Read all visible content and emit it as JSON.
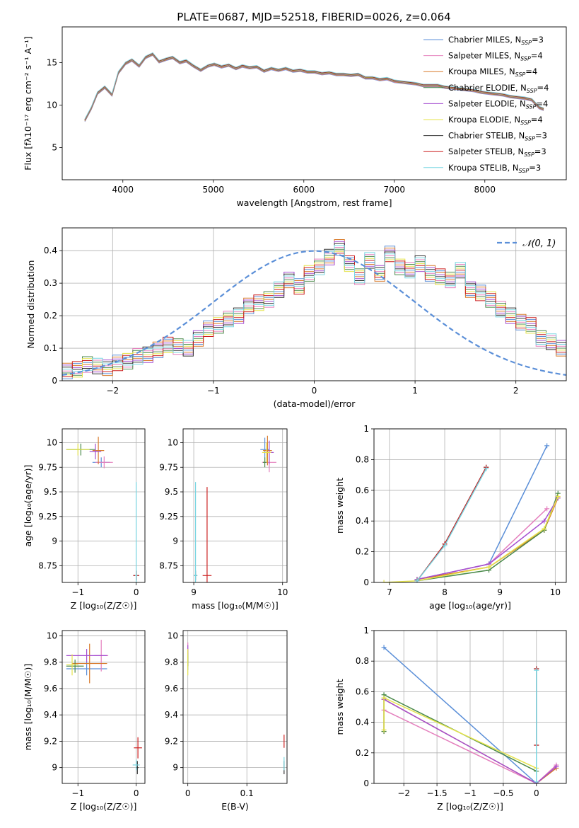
{
  "figure_title": "PLATE=0687, MJD=52518, FIBERID=0026, z=0.064",
  "model_colors": [
    "#5b8fd8",
    "#e47fbd",
    "#d87a2a",
    "#4b8a4b",
    "#a54ed0",
    "#e5e34a",
    "#333333",
    "#cc1f1f",
    "#78d6e2"
  ],
  "chart_data": [
    {
      "id": "spectrum",
      "type": "line",
      "title": "PLATE=0687, MJD=52518, FIBERID=0026, z=0.064",
      "xlabel": "wavelength [Angstrom, rest frame]",
      "ylabel": "Flux [fλ10⁻¹⁷ erg cm⁻² s⁻¹ A⁻¹]",
      "xlim": [
        3330,
        8900
      ],
      "ylim": [
        1.2,
        19.2
      ],
      "xticks": [
        4000,
        5000,
        6000,
        7000,
        8000
      ],
      "yticks": [
        5,
        10,
        15
      ],
      "grid": false,
      "legend_position": "upper-right",
      "data_color": "#808080",
      "observed_x": [
        3580,
        3650,
        3720,
        3800,
        3880,
        3950,
        4030,
        4100,
        4180,
        4250,
        4330,
        4400,
        4480,
        4550,
        4630,
        4700,
        4780,
        4860,
        4940,
        5010,
        5090,
        5170,
        5250,
        5320,
        5400,
        5480,
        5560,
        5640,
        5720,
        5800,
        5880,
        5960,
        6040,
        6120,
        6200,
        6280,
        6360,
        6440,
        6520,
        6600,
        6680,
        6760,
        6840,
        6920,
        7000,
        7080,
        7160,
        7240,
        7320,
        7400,
        7480,
        7560,
        7640,
        7720,
        7800,
        7880,
        7960,
        8040,
        8120,
        8200,
        8280,
        8360,
        8440,
        8520,
        8600,
        8650
      ],
      "observed_y": [
        8.2,
        9.6,
        11.4,
        12.1,
        11.2,
        13.8,
        14.9,
        15.3,
        14.6,
        15.6,
        16.0,
        15.1,
        15.4,
        15.6,
        15.0,
        15.2,
        14.6,
        14.1,
        14.6,
        14.8,
        14.5,
        14.7,
        14.3,
        14.6,
        14.4,
        14.5,
        14.0,
        14.3,
        14.1,
        14.3,
        14.0,
        14.1,
        13.9,
        13.9,
        13.7,
        13.8,
        13.6,
        13.6,
        13.5,
        13.6,
        13.2,
        13.2,
        13.0,
        13.1,
        12.8,
        12.7,
        12.6,
        12.5,
        12.3,
        12.3,
        12.3,
        12.1,
        12.0,
        11.9,
        11.8,
        11.7,
        11.5,
        11.4,
        11.3,
        11.2,
        11.0,
        10.9,
        10.8,
        10.6,
        9.7,
        9.5
      ],
      "legend": [
        {
          "label": "Chabrier MILES, N",
          "sub": "SSP",
          "tail": "=3"
        },
        {
          "label": "Salpeter MILES, N",
          "sub": "SSP",
          "tail": "=4"
        },
        {
          "label": "Kroupa MILES, N",
          "sub": "SSP",
          "tail": "=4"
        },
        {
          "label": "Chabrier ELODIE, N",
          "sub": "SSP",
          "tail": "=4"
        },
        {
          "label": "Salpeter ELODIE, N",
          "sub": "SSP",
          "tail": "=4"
        },
        {
          "label": "Kroupa ELODIE, N",
          "sub": "SSP",
          "tail": "=4"
        },
        {
          "label": "Chabrier STELIB, N",
          "sub": "SSP",
          "tail": "=3"
        },
        {
          "label": "Salpeter STELIB, N",
          "sub": "SSP",
          "tail": "=3"
        },
        {
          "label": "Kroupa STELIB, N",
          "sub": "SSP",
          "tail": "=3"
        }
      ]
    },
    {
      "id": "residual_histogram",
      "type": "histogram",
      "xlabel": "(data-model)/error",
      "ylabel": "Normed distribution",
      "xlim": [
        -2.5,
        2.5
      ],
      "ylim": [
        0,
        0.47
      ],
      "xticks": [
        -2,
        -1,
        0,
        1,
        2
      ],
      "yticks": [
        0.0,
        0.1,
        0.2,
        0.3,
        0.4
      ],
      "grid": true,
      "legend_position": "upper-right",
      "reference_curve": "N(0,1)",
      "reference_label": "𝒩(0, 1)",
      "bin_width": 0.1,
      "bin_start": -2.5,
      "heights": [
        0.03,
        0.035,
        0.05,
        0.045,
        0.04,
        0.055,
        0.06,
        0.075,
        0.08,
        0.095,
        0.11,
        0.105,
        0.1,
        0.13,
        0.16,
        0.17,
        0.19,
        0.2,
        0.23,
        0.24,
        0.25,
        0.28,
        0.31,
        0.29,
        0.33,
        0.35,
        0.38,
        0.41,
        0.36,
        0.32,
        0.37,
        0.33,
        0.39,
        0.35,
        0.34,
        0.36,
        0.33,
        0.32,
        0.31,
        0.34,
        0.28,
        0.27,
        0.25,
        0.22,
        0.2,
        0.18,
        0.17,
        0.13,
        0.12,
        0.1,
        0.09,
        0.08,
        0.1,
        0.07,
        0.065,
        0.06,
        0.055,
        0.045,
        0.04,
        0.035
      ]
    },
    {
      "id": "age_vs_Z",
      "type": "scatter",
      "xlabel": "Z [log₁₀(Z/Z☉)]",
      "ylabel": "age  [log₁₀(age/yr)]",
      "xlim": [
        -1.27,
        0.15
      ],
      "ylim": [
        8.58,
        10.14
      ],
      "xticks": [
        -1,
        0
      ],
      "yticks": [
        8.75,
        9.0,
        9.25,
        9.5,
        9.75,
        10.0
      ],
      "grid": true,
      "points": [
        {
          "model": 0,
          "x": -0.6,
          "y": 9.8,
          "xerr": 0.15,
          "yerr": 0.05
        },
        {
          "model": 1,
          "x": -0.55,
          "y": 9.8,
          "xerr": 0.15,
          "yerr": 0.06
        },
        {
          "model": 2,
          "x": -0.65,
          "y": 9.92,
          "xerr": 0.1,
          "yerr": 0.14
        },
        {
          "model": 3,
          "x": -0.95,
          "y": 9.93,
          "xerr": 0.25,
          "yerr": 0.06
        },
        {
          "model": 4,
          "x": -0.7,
          "y": 9.91,
          "xerr": 0.1,
          "yerr": 0.08
        },
        {
          "model": 5,
          "x": -1.0,
          "y": 9.93,
          "xerr": 0.2,
          "yerr": 0.06
        },
        {
          "model": 6,
          "x": 0.0,
          "y": 8.65,
          "xerr": 0.05,
          "yerr": 0.05
        },
        {
          "model": 7,
          "x": 0.0,
          "y": 8.65,
          "xerr": 0.05,
          "yerr": 0.05
        },
        {
          "model": 8,
          "x": 0.0,
          "y": 8.65,
          "xerr": 0.02,
          "yerr": 0.95
        }
      ]
    },
    {
      "id": "age_vs_mass",
      "type": "scatter",
      "xlabel": "mass [log₁₀(M/M☉)]",
      "ylabel": "",
      "xlim": [
        8.88,
        10.05
      ],
      "ylim": [
        8.58,
        10.14
      ],
      "xticks": [
        9,
        10
      ],
      "yticks": [
        8.75,
        9.0,
        9.25,
        9.5,
        9.75,
        10.0
      ],
      "grid": true,
      "points": [
        {
          "model": 0,
          "x": 9.8,
          "y": 9.93,
          "xerr": 0.05,
          "yerr": 0.12
        },
        {
          "model": 1,
          "x": 9.85,
          "y": 9.8,
          "xerr": 0.08,
          "yerr": 0.1
        },
        {
          "model": 2,
          "x": 9.83,
          "y": 9.92,
          "xerr": 0.05,
          "yerr": 0.15
        },
        {
          "model": 3,
          "x": 9.8,
          "y": 9.8,
          "xerr": 0.02,
          "yerr": 0.05
        },
        {
          "model": 4,
          "x": 9.85,
          "y": 9.9,
          "xerr": 0.05,
          "yerr": 0.12
        },
        {
          "model": 5,
          "x": 9.82,
          "y": 9.9,
          "xerr": 0.05,
          "yerr": 0.1
        },
        {
          "model": 6,
          "x": 9.02,
          "y": 8.65,
          "xerr": 0.02,
          "yerr": 0.05
        },
        {
          "model": 7,
          "x": 9.15,
          "y": 8.65,
          "xerr": 0.05,
          "yerr": 0.9
        },
        {
          "model": 8,
          "x": 9.02,
          "y": 8.65,
          "xerr": 0.02,
          "yerr": 0.95
        }
      ]
    },
    {
      "id": "mass_weight_vs_age",
      "type": "line",
      "xlabel": "age  [log₁₀(age/yr)]",
      "ylabel": "mass weight",
      "xlim": [
        6.72,
        10.2
      ],
      "ylim": [
        0.0,
        1.0
      ],
      "xticks": [
        7,
        8,
        9,
        10
      ],
      "yticks": [
        0.0,
        0.2,
        0.4,
        0.6,
        0.8,
        1.0
      ],
      "grid": true,
      "series": [
        {
          "model": 0,
          "x": [
            7.5,
            8.8,
            9.85
          ],
          "y": [
            0.02,
            0.12,
            0.89
          ]
        },
        {
          "model": 1,
          "x": [
            7.5,
            8.8,
            9.85
          ],
          "y": [
            0.02,
            0.12,
            0.48
          ]
        },
        {
          "model": 2,
          "x": [
            7.5,
            8.8,
            9.8,
            10.05
          ],
          "y": [
            0.02,
            0.1,
            0.34,
            0.55
          ]
        },
        {
          "model": 3,
          "x": [
            7.5,
            8.8,
            9.8,
            10.05
          ],
          "y": [
            0.01,
            0.08,
            0.34,
            0.58
          ]
        },
        {
          "model": 4,
          "x": [
            7.5,
            8.8,
            9.8,
            10.05
          ],
          "y": [
            0.02,
            0.12,
            0.4,
            0.55
          ]
        },
        {
          "model": 5,
          "x": [
            6.9,
            7.5,
            8.8,
            9.8,
            10.05
          ],
          "y": [
            0.0,
            0.01,
            0.1,
            0.35,
            0.56
          ]
        },
        {
          "model": 6,
          "x": [
            7.5,
            8.0,
            8.75
          ],
          "y": [
            0.01,
            0.25,
            0.75
          ]
        },
        {
          "model": 7,
          "x": [
            7.5,
            8.0,
            8.75
          ],
          "y": [
            0.01,
            0.25,
            0.75
          ]
        },
        {
          "model": 8,
          "x": [
            7.5,
            8.0,
            8.75
          ],
          "y": [
            0.01,
            0.24,
            0.74
          ]
        }
      ]
    },
    {
      "id": "mass_vs_Z",
      "type": "scatter",
      "xlabel": "Z [log₁₀(Z/Z☉)]",
      "ylabel": "mass [log₁₀(M/M☉)]",
      "xlim": [
        -1.27,
        0.15
      ],
      "ylim": [
        8.88,
        10.04
      ],
      "xticks": [
        -1,
        0
      ],
      "yticks": [
        9.0,
        9.2,
        9.4,
        9.6,
        9.8,
        10.0
      ],
      "grid": true,
      "points": [
        {
          "model": 0,
          "x": -0.85,
          "y": 9.75,
          "xerr": 0.35,
          "yerr": 0.05
        },
        {
          "model": 1,
          "x": -0.6,
          "y": 9.85,
          "xerr": 0.12,
          "yerr": 0.12
        },
        {
          "model": 2,
          "x": -0.8,
          "y": 9.79,
          "xerr": 0.3,
          "yerr": 0.15
        },
        {
          "model": 3,
          "x": -1.05,
          "y": 9.77,
          "xerr": 0.15,
          "yerr": 0.05
        },
        {
          "model": 4,
          "x": -0.85,
          "y": 9.85,
          "xerr": 0.35,
          "yerr": 0.05
        },
        {
          "model": 5,
          "x": -1.1,
          "y": 9.78,
          "xerr": 0.1,
          "yerr": 0.08
        },
        {
          "model": 6,
          "x": 0.02,
          "y": 9.0,
          "xerr": 0.02,
          "yerr": 0.05
        },
        {
          "model": 7,
          "x": 0.03,
          "y": 9.15,
          "xerr": 0.07,
          "yerr": 0.08
        },
        {
          "model": 8,
          "x": 0.0,
          "y": 9.02,
          "xerr": 0.06,
          "yerr": 0.04
        }
      ]
    },
    {
      "id": "mass_vs_ebv",
      "type": "scatter",
      "xlabel": "E(B-V)",
      "ylabel": "",
      "xlim": [
        -0.008,
        0.168
      ],
      "ylim": [
        8.88,
        10.04
      ],
      "xticks": [
        0.0,
        0.1
      ],
      "yticks": [
        9.0,
        9.2,
        9.4,
        9.6,
        9.8,
        10.0
      ],
      "grid": true,
      "points": [
        {
          "model": 0,
          "x": 0.0,
          "y": 9.82,
          "xerr": 0.0,
          "yerr": 0.08
        },
        {
          "model": 1,
          "x": 0.0,
          "y": 9.9,
          "xerr": 0.0,
          "yerr": 0.05
        },
        {
          "model": 2,
          "x": 0.0,
          "y": 9.83,
          "xerr": 0.0,
          "yerr": 0.06
        },
        {
          "model": 3,
          "x": 0.0,
          "y": 9.82,
          "xerr": 0.0,
          "yerr": 0.05
        },
        {
          "model": 4,
          "x": 0.0,
          "y": 9.89,
          "xerr": 0.0,
          "yerr": 0.04
        },
        {
          "model": 5,
          "x": 0.0,
          "y": 9.8,
          "xerr": 0.0,
          "yerr": 0.1
        },
        {
          "model": 6,
          "x": 0.163,
          "y": 9.0,
          "xerr": 0.0,
          "yerr": 0.05
        },
        {
          "model": 7,
          "x": 0.163,
          "y": 9.2,
          "xerr": 0.0,
          "yerr": 0.05
        },
        {
          "model": 8,
          "x": 0.163,
          "y": 9.03,
          "xerr": 0.0,
          "yerr": 0.05
        }
      ]
    },
    {
      "id": "mass_weight_vs_Z",
      "type": "line",
      "xlabel": "Z [log₁₀(Z/Z☉)]",
      "ylabel": "mass weight",
      "xlim": [
        -2.45,
        0.45
      ],
      "ylim": [
        0.0,
        1.0
      ],
      "xticks": [
        -2.0,
        -1.5,
        -1.0,
        -0.5,
        0.0
      ],
      "yticks": [
        0.0,
        0.2,
        0.4,
        0.6,
        0.8,
        1.0
      ],
      "grid": true,
      "series": [
        {
          "model": 0,
          "x": [
            -2.3,
            0.0
          ],
          "y": [
            0.89,
            0.0
          ]
        },
        {
          "model": 1,
          "x": [
            -2.3,
            0.0,
            0.3
          ],
          "y": [
            0.48,
            0.0,
            0.12
          ]
        },
        {
          "model": 2,
          "x": [
            -2.3,
            -2.3,
            0.0,
            0.3
          ],
          "y": [
            0.34,
            0.55,
            0.0,
            0.1
          ]
        },
        {
          "model": 3,
          "x": [
            -2.3,
            -2.3,
            0.0
          ],
          "y": [
            0.34,
            0.58,
            0.08
          ]
        },
        {
          "model": 4,
          "x": [
            -2.3,
            0.0,
            0.3
          ],
          "y": [
            0.55,
            0.0,
            0.11
          ]
        },
        {
          "model": 5,
          "x": [
            -2.3,
            -2.3,
            0.0
          ],
          "y": [
            0.35,
            0.56,
            0.1
          ]
        },
        {
          "model": 6,
          "x": [
            0.0,
            0.0
          ],
          "y": [
            0.25,
            0.75
          ]
        },
        {
          "model": 7,
          "x": [
            0.0,
            0.0
          ],
          "y": [
            0.25,
            0.75
          ]
        },
        {
          "model": 8,
          "x": [
            0.0,
            0.0
          ],
          "y": [
            0.01,
            0.74
          ]
        }
      ]
    }
  ]
}
